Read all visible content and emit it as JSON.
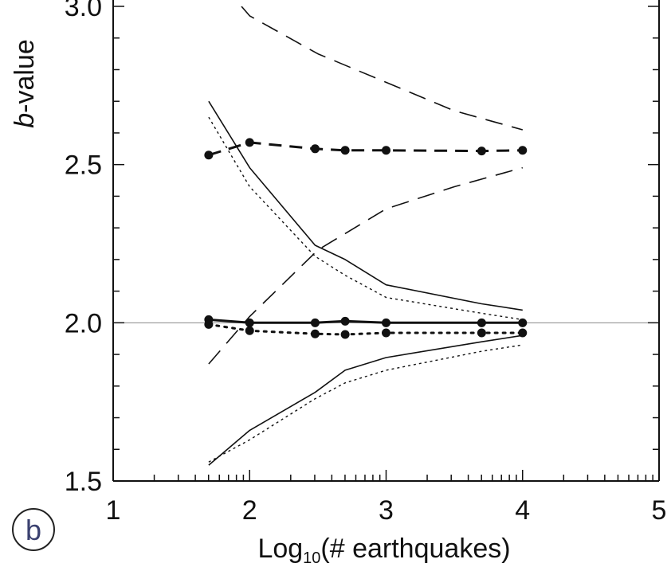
{
  "chart_data": {
    "type": "line",
    "panel_label": "b",
    "xlabel": {
      "base": "Log",
      "sub": "10",
      "rest": "(# earthquakes)"
    },
    "ylabel": {
      "italic": "b",
      "rest": "-value"
    },
    "xlim": [
      1,
      5
    ],
    "ylim": [
      1.5,
      3.0
    ],
    "x_scale": "log10 of count",
    "grid": false,
    "legend": "none",
    "x_ticks": [
      {
        "value": 1,
        "label": "1"
      },
      {
        "value": 2,
        "label": "2"
      },
      {
        "value": 3,
        "label": "3"
      },
      {
        "value": 4,
        "label": "4"
      },
      {
        "value": 5,
        "label": "5"
      }
    ],
    "y_ticks": [
      {
        "value": 1.5,
        "label": "1.5"
      },
      {
        "value": 2.0,
        "label": "2.0"
      },
      {
        "value": 2.5,
        "label": "2.5"
      },
      {
        "value": 3.0,
        "label": "3.0"
      }
    ],
    "reference_line": {
      "y": 2.0,
      "color": "#888888"
    },
    "series": [
      {
        "id": "true-b-2",
        "style": "solid",
        "markers": true,
        "x": [
          1.7,
          2.0,
          2.48,
          2.7,
          3.0,
          3.7,
          4.0
        ],
        "y": [
          2.01,
          2.0,
          2.0,
          2.005,
          2.0,
          2.0,
          2.0
        ]
      },
      {
        "id": "upper-bound-solid",
        "style": "solid-thin",
        "markers": false,
        "x": [
          1.7,
          2.0,
          2.48,
          2.7,
          3.0,
          3.7,
          4.0
        ],
        "y": [
          2.7,
          2.49,
          2.245,
          2.2,
          2.12,
          2.06,
          2.04
        ]
      },
      {
        "id": "lower-bound-solid",
        "style": "solid-thin",
        "markers": false,
        "x": [
          1.7,
          2.0,
          2.48,
          2.7,
          3.0,
          3.7,
          4.0
        ],
        "y": [
          1.55,
          1.66,
          1.78,
          1.85,
          1.89,
          1.94,
          1.96
        ]
      },
      {
        "id": "true-b-2-dotted",
        "style": "dotted",
        "markers": true,
        "x": [
          1.7,
          2.0,
          2.48,
          2.7,
          3.0,
          3.7,
          4.0
        ],
        "y": [
          1.995,
          1.975,
          1.965,
          1.963,
          1.968,
          1.968,
          1.968
        ]
      },
      {
        "id": "upper-bound-dotted",
        "style": "dotted-thin",
        "markers": false,
        "x": [
          1.7,
          2.0,
          2.48,
          2.7,
          3.0,
          3.7,
          4.0
        ],
        "y": [
          2.65,
          2.43,
          2.21,
          2.15,
          2.08,
          2.03,
          2.01
        ]
      },
      {
        "id": "lower-bound-dotted",
        "style": "dotted-thin",
        "markers": false,
        "x": [
          1.7,
          2.0,
          2.48,
          2.7,
          3.0,
          3.7,
          4.0
        ],
        "y": [
          1.56,
          1.63,
          1.76,
          1.81,
          1.85,
          1.91,
          1.93
        ]
      },
      {
        "id": "b-2-5-dashed",
        "style": "dashed",
        "markers": true,
        "x": [
          1.7,
          2.0,
          2.48,
          2.7,
          3.0,
          3.7,
          4.0
        ],
        "y": [
          2.53,
          2.57,
          2.55,
          2.545,
          2.545,
          2.543,
          2.545
        ]
      },
      {
        "id": "upper-bound-dashed",
        "style": "dashed-thin",
        "markers": false,
        "x": [
          1.94,
          2.0,
          2.5,
          3.0,
          3.5,
          4.0
        ],
        "y": [
          3.0,
          2.97,
          2.85,
          2.76,
          2.67,
          2.61
        ]
      },
      {
        "id": "lower-bound-dashed",
        "style": "dashed-thin",
        "markers": false,
        "x": [
          1.7,
          2.0,
          2.5,
          3.0,
          3.5,
          4.0
        ],
        "y": [
          1.87,
          2.02,
          2.23,
          2.36,
          2.43,
          2.49
        ]
      }
    ]
  }
}
